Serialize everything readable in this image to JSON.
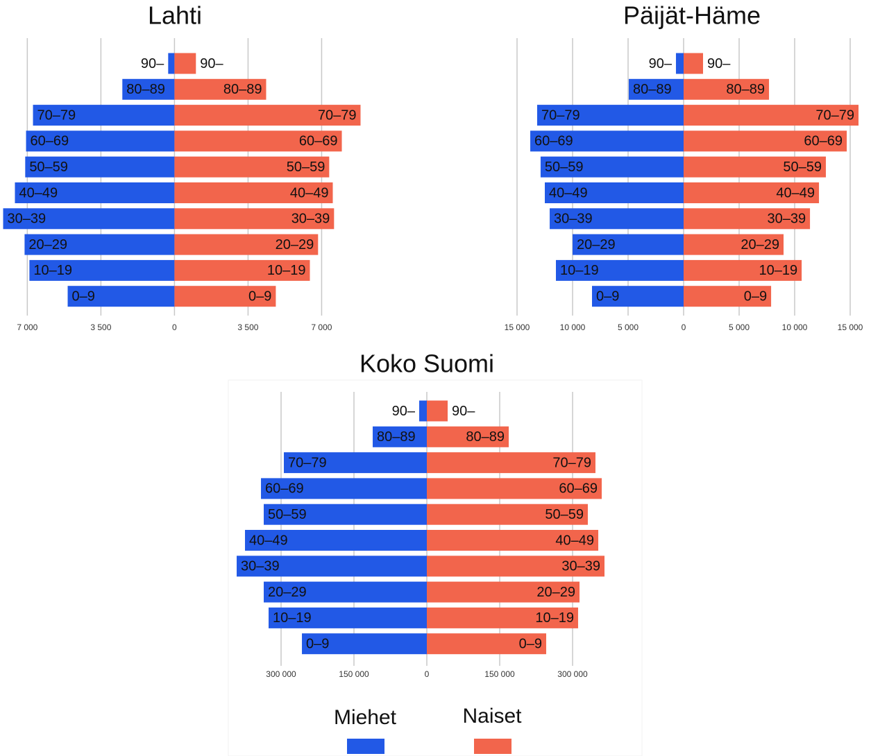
{
  "chart_data": [
    {
      "type": "bar",
      "title": "Lahti",
      "categories": [
        "90–",
        "80–89",
        "70–79",
        "60–69",
        "50–59",
        "40–49",
        "30–39",
        "20–29",
        "10–19",
        "0–9"
      ],
      "series": [
        {
          "name": "Miehet",
          "color": "#2259e6",
          "values": [
            -300,
            -2480,
            -6730,
            -7060,
            -7100,
            -7590,
            -8150,
            -7130,
            -6900,
            -5080
          ]
        },
        {
          "name": "Naiset",
          "color": "#f2654c",
          "values": [
            1020,
            4360,
            8850,
            7960,
            7360,
            7530,
            7590,
            6830,
            6440,
            4820
          ]
        }
      ],
      "xlim": [
        -8200,
        8900
      ],
      "xticks": [
        {
          "value": -7000,
          "label": "7 000"
        },
        {
          "value": -3500,
          "label": "3 500"
        },
        0,
        {
          "value": 3500,
          "label": "3 500"
        },
        {
          "value": 7000,
          "label": "7 000"
        }
      ],
      "grid": true
    },
    {
      "type": "bar",
      "title": "Päijät-Häme",
      "categories": [
        "90–",
        "80–89",
        "70–79",
        "60–69",
        "50–59",
        "40–49",
        "30–39",
        "20–29",
        "10–19",
        "0–9"
      ],
      "series": [
        {
          "name": "Miehet",
          "color": "#2259e6",
          "values": [
            -690,
            -4940,
            -13190,
            -13810,
            -12880,
            -12500,
            -12060,
            -10000,
            -11500,
            -8250
          ]
        },
        {
          "name": "Naiset",
          "color": "#f2654c",
          "values": [
            1750,
            7690,
            15750,
            14690,
            12810,
            12190,
            11380,
            9000,
            10630,
            7880
          ]
        }
      ],
      "xlim": [
        -15500,
        16000
      ],
      "xticks": [
        {
          "value": -15000,
          "label": "15 000"
        },
        {
          "value": -10000,
          "label": "10 000"
        },
        {
          "value": -5000,
          "label": "5 000"
        },
        0,
        {
          "value": 5000,
          "label": "5 000"
        },
        {
          "value": 10000,
          "label": "10 000"
        },
        {
          "value": 15000,
          "label": "15 000"
        }
      ],
      "grid": true
    },
    {
      "type": "bar",
      "title": "Koko Suomi",
      "categories": [
        "90–",
        "80–89",
        "70–79",
        "60–69",
        "50–59",
        "40–49",
        "30–39",
        "20–29",
        "10–19",
        "0–9"
      ],
      "series": [
        {
          "name": "Miehet",
          "color": "#2259e6",
          "values": [
            -15700,
            -111400,
            -294300,
            -341400,
            -335700,
            -374300,
            -391400,
            -335700,
            -325700,
            -257100
          ]
        },
        {
          "name": "Naiset",
          "color": "#f2654c",
          "values": [
            42900,
            168600,
            347100,
            360000,
            331400,
            352900,
            365700,
            314300,
            311400,
            245700
          ]
        }
      ],
      "xlim": [
        -400000,
        380000
      ],
      "xticks": [
        {
          "value": -300000,
          "label": "300 000"
        },
        {
          "value": -150000,
          "label": "150 000"
        },
        0,
        {
          "value": 150000,
          "label": "150 000"
        },
        {
          "value": 300000,
          "label": "300 000"
        }
      ],
      "grid": true,
      "legend": "bottom"
    }
  ]
}
